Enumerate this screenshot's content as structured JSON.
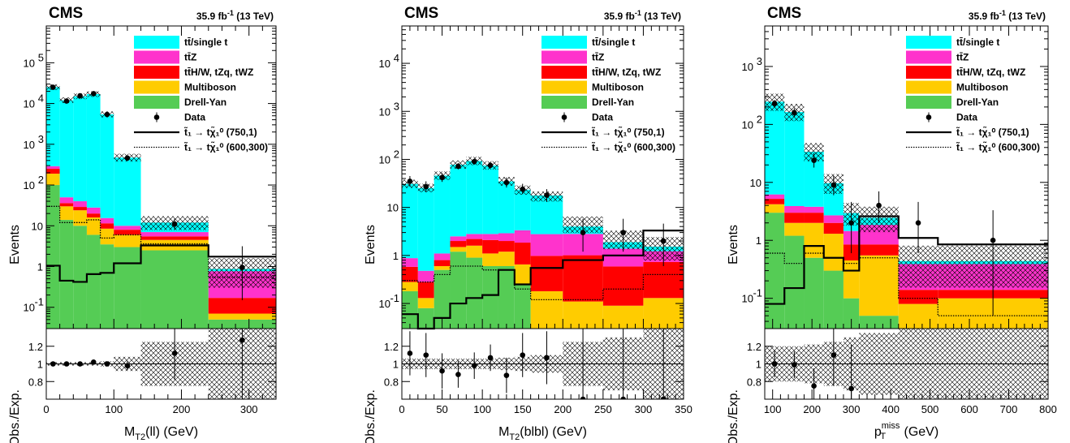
{
  "labels": {
    "experiment": "CMS",
    "lumi": "35.9 fb",
    "lumi_sup": "-1",
    "energy": "(13 TeV)",
    "ylabel_top": "Events",
    "ylabel_ratio": "Obs./Exp."
  },
  "colors": {
    "tt_single_t": "#00ffff",
    "ttZ": "#ff33cc",
    "ttH_W_tZq_tWZ": "#ff0000",
    "multiboson": "#ffcc00",
    "drell_yan": "#55cc55",
    "data": "#000000"
  },
  "legend": [
    {
      "key": "tt",
      "label": "tt̄/single t",
      "kind": "fill",
      "color": "#00ffff"
    },
    {
      "key": "ttz",
      "label": "tt̄Z",
      "kind": "fill",
      "color": "#ff33cc"
    },
    {
      "key": "tth",
      "label": "tt̄H/W, tZq, tWZ",
      "kind": "fill",
      "color": "#ff0000"
    },
    {
      "key": "mb",
      "label": "Multiboson",
      "kind": "fill",
      "color": "#ffcc00"
    },
    {
      "key": "dy",
      "label": "Drell-Yan",
      "kind": "fill",
      "color": "#55cc55"
    },
    {
      "key": "data",
      "label": "Data",
      "kind": "marker"
    },
    {
      "key": "sig1",
      "label": "t̃₁ → tχ̃₁⁰ (750,1)",
      "kind": "solid"
    },
    {
      "key": "sig2",
      "label": "t̃₁ → tχ̃₁⁰ (600,300)",
      "kind": "dotted"
    }
  ],
  "chart_data": [
    {
      "type": "bar",
      "stacked": true,
      "log_y": true,
      "xlabel": "M",
      "xlabel_sub": "T2",
      "xlabel_rest": "(ll) (GeV)",
      "ylim": [
        0.03,
        800000
      ],
      "yticks": [
        {
          "v": 0.1,
          "l": "10",
          "e": "-1"
        },
        {
          "v": 1,
          "l": "1",
          "e": ""
        },
        {
          "v": 10,
          "l": "10",
          "e": ""
        },
        {
          "v": 100,
          "l": "10",
          "e": "2"
        },
        {
          "v": 1000,
          "l": "10",
          "e": "3"
        },
        {
          "v": 10000,
          "l": "10",
          "e": "4"
        },
        {
          "v": 100000,
          "l": "10",
          "e": "5"
        }
      ],
      "xlim": [
        0,
        340
      ],
      "xticks": [
        0,
        100,
        200,
        300
      ],
      "bin_edges": [
        0,
        20,
        40,
        60,
        80,
        100,
        140,
        240,
        340
      ],
      "series": [
        {
          "name": "Drell-Yan",
          "values": [
            100,
            14,
            10,
            6,
            3.5,
            3,
            2.5,
            0.05
          ]
        },
        {
          "name": "Multiboson",
          "values": [
            90,
            16,
            14,
            10,
            5,
            3,
            2,
            0.02
          ]
        },
        {
          "name": "tt̄H/W, tZq, tWZ",
          "values": [
            60,
            6,
            5,
            4,
            3,
            2,
            1,
            0.1
          ]
        },
        {
          "name": "tt̄Z",
          "values": [
            40,
            14,
            11,
            8,
            4,
            2,
            1.5,
            0.6
          ]
        },
        {
          "name": "tt̄/single t",
          "values": [
            25000,
            12000,
            15000,
            17000,
            5400,
            460,
            5,
            0.1
          ]
        }
      ],
      "total_mc": [
        25300,
        12050,
        15040,
        17030,
        5416,
        470,
        12,
        0.87
      ],
      "signal_1": [
        1.05,
        0.45,
        0.42,
        0.65,
        0.7,
        1.2,
        3.3,
        1.75
      ],
      "signal_2": [
        30,
        12,
        12,
        14,
        5,
        6,
        3.6,
        0.55
      ],
      "data": [
        {
          "x": 10,
          "y": 25000,
          "err": [
            0,
            0
          ]
        },
        {
          "x": 30,
          "y": 11500,
          "err": [
            0,
            0
          ]
        },
        {
          "x": 50,
          "y": 15500,
          "err": [
            0,
            0
          ]
        },
        {
          "x": 70,
          "y": 17500,
          "err": [
            0,
            0
          ]
        },
        {
          "x": 90,
          "y": 5400,
          "err": [
            0,
            0
          ]
        },
        {
          "x": 120,
          "y": 460,
          "err": [
            0,
            0
          ]
        },
        {
          "x": 190,
          "y": 11,
          "err": [
            3,
            4
          ]
        },
        {
          "x": 290,
          "y": 0.95,
          "err": [
            0.8,
            2.2
          ]
        }
      ],
      "ratio": {
        "ylim": [
          0.6,
          1.4
        ],
        "yticks": [
          0.8,
          1,
          1.2
        ],
        "unc": [
          0.02,
          0.02,
          0.02,
          0.02,
          0.03,
          0.08,
          0.25,
          0.6
        ],
        "points": [
          {
            "x": 10,
            "y": 1.0,
            "err": 0.01
          },
          {
            "x": 30,
            "y": 1.0,
            "err": 0.01
          },
          {
            "x": 50,
            "y": 1.0,
            "err": 0.01
          },
          {
            "x": 70,
            "y": 1.02,
            "err": 0.01
          },
          {
            "x": 90,
            "y": 1.0,
            "err": 0.02
          },
          {
            "x": 120,
            "y": 0.98,
            "err": 0.05
          },
          {
            "x": 190,
            "y": 1.12,
            "err": 0.3
          },
          {
            "x": 290,
            "y": 1.27,
            "err": 1.0
          }
        ]
      }
    },
    {
      "type": "bar",
      "stacked": true,
      "log_y": true,
      "xlabel": "M",
      "xlabel_sub": "T2",
      "xlabel_rest": "(blbl) (GeV)",
      "ylim": [
        0.03,
        60000
      ],
      "yticks": [
        {
          "v": 0.1,
          "l": "10",
          "e": "-1"
        },
        {
          "v": 1,
          "l": "1",
          "e": ""
        },
        {
          "v": 10,
          "l": "10",
          "e": ""
        },
        {
          "v": 100,
          "l": "10",
          "e": "2"
        },
        {
          "v": 1000,
          "l": "10",
          "e": "3"
        },
        {
          "v": 10000,
          "l": "10",
          "e": "4"
        }
      ],
      "xlim": [
        0,
        350
      ],
      "xticks": [
        0,
        50,
        100,
        150,
        200,
        250,
        300,
        350
      ],
      "bin_edges": [
        0,
        20,
        40,
        60,
        80,
        100,
        120,
        140,
        160,
        200,
        250,
        300,
        350
      ],
      "series": [
        {
          "name": "Drell-Yan",
          "values": [
            0.18,
            0.08,
            0.5,
            1.2,
            0.9,
            0.6,
            0.6,
            0.25,
            0.03,
            0.03,
            0.03,
            0.03
          ]
        },
        {
          "name": "Multiboson",
          "values": [
            0.1,
            0.05,
            0.1,
            0.3,
            0.7,
            0.5,
            0.6,
            0.4,
            0.15,
            0.08,
            0.06,
            0.1
          ]
        },
        {
          "name": "tt̄H/W, tZq, tWZ",
          "values": [
            0.3,
            0.15,
            0.2,
            0.5,
            0.6,
            1.0,
            0.8,
            1.2,
            0.8,
            0.9,
            0.5,
            0.6
          ]
        },
        {
          "name": "tt̄Z",
          "values": [
            0.3,
            0.2,
            0.3,
            0.5,
            0.6,
            0.7,
            0.9,
            1.5,
            1.8,
            1.8,
            0.8,
            0.5
          ]
        },
        {
          "name": "tt̄/single t",
          "values": [
            30,
            25,
            45,
            75,
            90,
            72,
            32,
            20,
            15,
            1.2,
            0.5,
            0.3
          ]
        }
      ],
      "total_mc": [
        31,
        25.5,
        46,
        78,
        93,
        75,
        35,
        23,
        17,
        4.5,
        2.2,
        1.5
      ],
      "signal_1": [
        0.06,
        0.03,
        0.05,
        0.1,
        0.13,
        0.15,
        0.5,
        0.25,
        0.55,
        0.8,
        1.0,
        3.3
      ],
      "signal_2": [
        0.3,
        0.28,
        0.4,
        0.6,
        0.6,
        0.5,
        0.5,
        0.2,
        0.12,
        0.12,
        0.2,
        0.4
      ],
      "data": [
        {
          "x": 10,
          "y": 35,
          "err": [
            8,
            10
          ]
        },
        {
          "x": 30,
          "y": 27,
          "err": [
            6,
            8
          ]
        },
        {
          "x": 50,
          "y": 42,
          "err": [
            8,
            10
          ]
        },
        {
          "x": 70,
          "y": 72,
          "err": [
            10,
            12
          ]
        },
        {
          "x": 90,
          "y": 90,
          "err": [
            12,
            14
          ]
        },
        {
          "x": 110,
          "y": 75,
          "err": [
            10,
            12
          ]
        },
        {
          "x": 130,
          "y": 33,
          "err": [
            7,
            9
          ]
        },
        {
          "x": 150,
          "y": 24,
          "err": [
            5,
            7
          ]
        },
        {
          "x": 180,
          "y": 18,
          "err": [
            5,
            6
          ]
        },
        {
          "x": 225,
          "y": 3,
          "err": [
            1.8,
            2.8
          ]
        },
        {
          "x": 275,
          "y": 3,
          "err": [
            1.8,
            2.8
          ]
        },
        {
          "x": 325,
          "y": 2,
          "err": [
            1.4,
            2.6
          ]
        }
      ],
      "ratio": {
        "ylim": [
          0.6,
          1.4
        ],
        "yticks": [
          0.8,
          1,
          1.2
        ],
        "unc": [
          0.06,
          0.06,
          0.06,
          0.06,
          0.06,
          0.06,
          0.07,
          0.08,
          0.1,
          0.25,
          0.3,
          0.4
        ],
        "points": [
          {
            "x": 10,
            "y": 1.12,
            "err": 0.25
          },
          {
            "x": 30,
            "y": 1.1,
            "err": 0.25
          },
          {
            "x": 50,
            "y": 0.92,
            "err": 0.2
          },
          {
            "x": 70,
            "y": 0.88,
            "err": 0.15
          },
          {
            "x": 90,
            "y": 0.98,
            "err": 0.15
          },
          {
            "x": 110,
            "y": 1.07,
            "err": 0.15
          },
          {
            "x": 130,
            "y": 0.87,
            "err": 0.2
          },
          {
            "x": 150,
            "y": 1.1,
            "err": 0.25
          },
          {
            "x": 180,
            "y": 1.07,
            "err": 0.3
          },
          {
            "x": 225,
            "y": 0.6,
            "err": 0.8
          },
          {
            "x": 275,
            "y": 0.6,
            "err": 0.8
          },
          {
            "x": 325,
            "y": 0.6,
            "err": 0.8
          }
        ]
      }
    },
    {
      "type": "bar",
      "stacked": true,
      "log_y": true,
      "xlabel": "p",
      "xlabel_sub": "T",
      "xlabel_sup": "miss",
      "xlabel_rest": "(GeV)",
      "ylim": [
        0.03,
        5000
      ],
      "yticks": [
        {
          "v": 0.1,
          "l": "10",
          "e": "-1"
        },
        {
          "v": 1,
          "l": "1",
          "e": ""
        },
        {
          "v": 10,
          "l": "10",
          "e": ""
        },
        {
          "v": 100,
          "l": "10",
          "e": "2"
        },
        {
          "v": 1000,
          "l": "10",
          "e": "3"
        }
      ],
      "xlim": [
        80,
        800
      ],
      "xticks": [
        100,
        200,
        300,
        400,
        500,
        600,
        700,
        800
      ],
      "bin_edges": [
        80,
        130,
        180,
        230,
        280,
        320,
        420,
        520,
        800
      ],
      "series": [
        {
          "name": "Drell-Yan",
          "values": [
            3,
            1.2,
            0.5,
            0.3,
            0.1,
            0.05,
            0.02,
            0.02
          ]
        },
        {
          "name": "Multiboson",
          "values": [
            1.2,
            0.8,
            1.5,
            1.0,
            0.35,
            0.5,
            0.06,
            0.08
          ]
        },
        {
          "name": "tt̄H/W, tZq, tWZ",
          "values": [
            1.0,
            1.0,
            1.0,
            0.7,
            0.4,
            0.3,
            0.06,
            0.04
          ]
        },
        {
          "name": "tt̄Z",
          "values": [
            1.0,
            0.9,
            0.8,
            0.7,
            0.6,
            1.0,
            0.25,
            0.25
          ]
        },
        {
          "name": "tt̄/single t",
          "values": [
            240,
            160,
            30,
            7,
            1.5,
            0.6,
            0.05,
            0.05
          ]
        }
      ],
      "total_mc": [
        246,
        164,
        34,
        9.7,
        2.95,
        2.45,
        0.44,
        0.44
      ],
      "signal_1": [
        0.08,
        0.15,
        0.8,
        0.5,
        0.3,
        2.6,
        1.1,
        0.85
      ],
      "signal_2": [
        0.6,
        0.4,
        0.6,
        0.5,
        0.4,
        0.5,
        0.1,
        0.05
      ],
      "data": [
        {
          "x": 105,
          "y": 230,
          "err": [
            30,
            35
          ]
        },
        {
          "x": 155,
          "y": 160,
          "err": [
            25,
            30
          ]
        },
        {
          "x": 205,
          "y": 24,
          "err": [
            6,
            8
          ]
        },
        {
          "x": 255,
          "y": 9,
          "err": [
            3,
            4
          ]
        },
        {
          "x": 300,
          "y": 2,
          "err": [
            1.4,
            2.6
          ]
        },
        {
          "x": 370,
          "y": 4,
          "err": [
            2,
            3
          ]
        },
        {
          "x": 470,
          "y": 2,
          "err": [
            1.4,
            2.6
          ]
        },
        {
          "x": 660,
          "y": 1,
          "err": [
            0.95,
            2.3
          ]
        }
      ],
      "ratio": {
        "ylim": [
          0.6,
          1.4
        ],
        "yticks": [
          0.8,
          1,
          1.2
        ],
        "unc": [
          0.2,
          0.2,
          0.22,
          0.25,
          0.3,
          0.35,
          0.6,
          0.6
        ],
        "points": [
          {
            "x": 105,
            "y": 1.0,
            "err": 0.15
          },
          {
            "x": 155,
            "y": 0.99,
            "err": 0.15
          },
          {
            "x": 205,
            "y": 0.75,
            "err": 0.2
          },
          {
            "x": 255,
            "y": 1.1,
            "err": 0.35
          },
          {
            "x": 300,
            "y": 0.72,
            "err": 0.5
          }
        ]
      }
    }
  ]
}
